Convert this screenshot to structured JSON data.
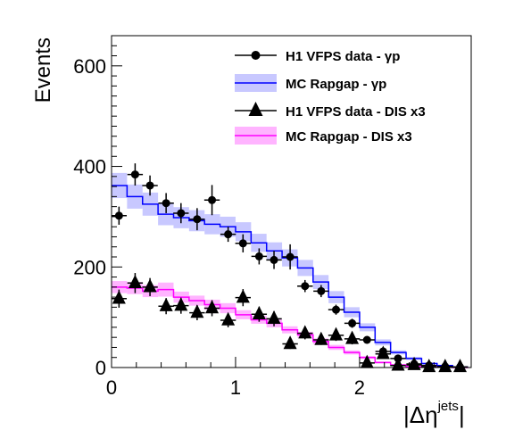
{
  "chart_data": {
    "type": "histogram",
    "xlabel": "|Δηjets|",
    "xlabel_parts": {
      "open": "|Δη",
      "sup": "jets",
      "close": "|"
    },
    "ylabel": "Events",
    "xlim": [
      0,
      2.9
    ],
    "ylim": [
      0,
      660
    ],
    "x_ticks": [
      0,
      1,
      2
    ],
    "x_tick_labels": [
      "0",
      "1",
      "2"
    ],
    "y_ticks": [
      0,
      200,
      400,
      600
    ],
    "y_tick_labels": [
      "0",
      "200",
      "400",
      "600"
    ],
    "grid": false,
    "legend_position": "top-right",
    "bin_edges": [
      0,
      0.125,
      0.25,
      0.375,
      0.5,
      0.625,
      0.75,
      0.875,
      1.0,
      1.125,
      1.25,
      1.375,
      1.5,
      1.625,
      1.75,
      1.875,
      2.0,
      2.125,
      2.25,
      2.375,
      2.5,
      2.625,
      2.75,
      2.875
    ],
    "series": [
      {
        "name": "H1 VFPS data - γp",
        "kind": "data",
        "marker": "circle",
        "color": "#000000",
        "x": [
          0.06,
          0.19,
          0.31,
          0.44,
          0.56,
          0.69,
          0.81,
          0.94,
          1.06,
          1.19,
          1.31,
          1.44,
          1.56,
          1.69,
          1.81,
          1.94,
          2.06,
          2.19,
          2.31,
          2.44,
          2.56,
          2.69,
          2.81
        ],
        "values": [
          302,
          384,
          362,
          327,
          307,
          295,
          333,
          265,
          247,
          221,
          214,
          220,
          162,
          152,
          115,
          88,
          55,
          32,
          18,
          7,
          4,
          2,
          1
        ],
        "errors": [
          18,
          22,
          20,
          20,
          20,
          22,
          30,
          15,
          18,
          16,
          18,
          25,
          12,
          12,
          10,
          9,
          7,
          5,
          4,
          3,
          2,
          1,
          1
        ]
      },
      {
        "name": "MC Rapgap - γp",
        "kind": "mc",
        "color": "#0000ff",
        "band_color": "#c8c8ff",
        "values": [
          362,
          340,
          325,
          305,
          298,
          292,
          285,
          280,
          270,
          248,
          232,
          218,
          198,
          170,
          140,
          110,
          80,
          50,
          30,
          18,
          8,
          4,
          1
        ],
        "band_error": [
          25,
          24,
          23,
          22,
          21,
          21,
          20,
          20,
          19,
          18,
          17,
          17,
          16,
          14,
          12,
          10,
          8,
          6,
          4,
          3,
          2,
          1,
          1
        ]
      },
      {
        "name": "H1 VFPS data - DIS x3",
        "kind": "data",
        "marker": "triangle",
        "color": "#000000",
        "x": [
          0.06,
          0.19,
          0.31,
          0.44,
          0.56,
          0.69,
          0.81,
          0.94,
          1.06,
          1.19,
          1.31,
          1.44,
          1.56,
          1.69,
          1.81,
          1.94,
          2.06,
          2.19,
          2.31,
          2.44,
          2.56,
          2.69,
          2.81
        ],
        "values": [
          137,
          168,
          160,
          122,
          123,
          109,
          118,
          94,
          139,
          106,
          97,
          47,
          68,
          55,
          64,
          57,
          9,
          27,
          4,
          5,
          1,
          1,
          1
        ],
        "errors": [
          18,
          20,
          18,
          16,
          16,
          15,
          16,
          14,
          17,
          15,
          15,
          10,
          12,
          10,
          11,
          11,
          4,
          8,
          3,
          3,
          1,
          1,
          1
        ]
      },
      {
        "name": "MC Rapgap - DIS x3",
        "kind": "mc",
        "color": "#ff00ff",
        "band_color": "#ffb4ff",
        "values": [
          160,
          158,
          152,
          155,
          140,
          133,
          125,
          118,
          105,
          95,
          88,
          75,
          65,
          52,
          40,
          30,
          20,
          10,
          5,
          2,
          1,
          1,
          0
        ],
        "band_error": [
          12,
          12,
          12,
          14,
          11,
          10,
          10,
          10,
          9,
          8,
          8,
          7,
          6,
          6,
          5,
          4,
          3,
          2,
          2,
          1,
          1,
          1,
          0
        ]
      }
    ]
  }
}
